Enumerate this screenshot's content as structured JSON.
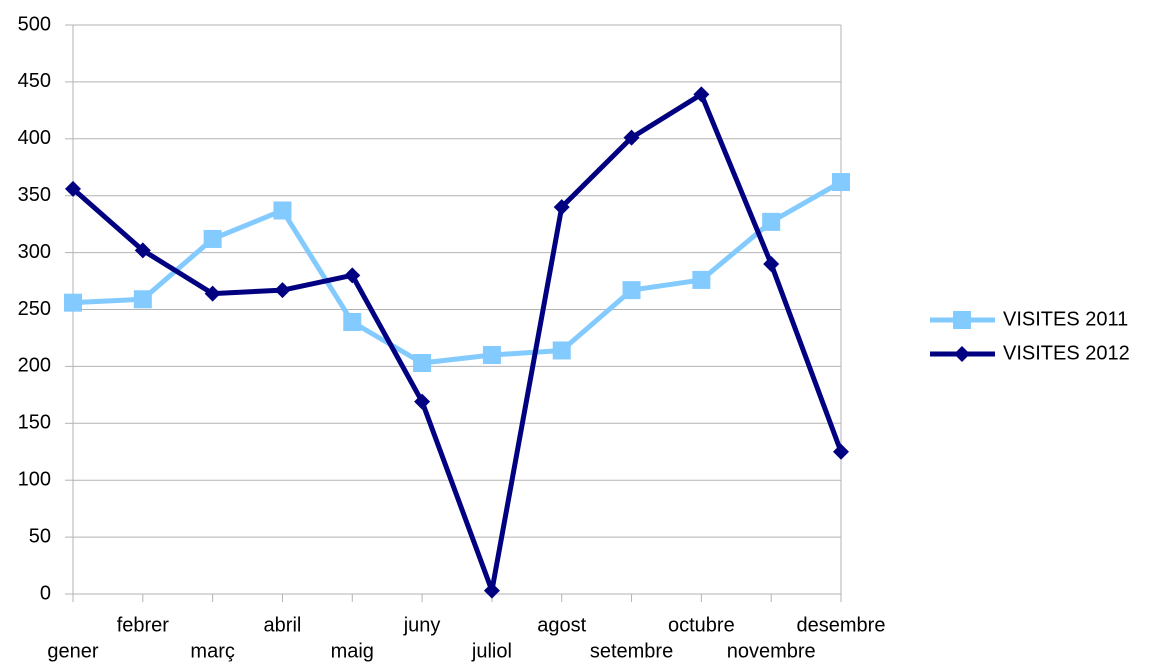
{
  "chart_data": {
    "type": "line",
    "categories": [
      "gener",
      "febrer",
      "març",
      "abril",
      "maig",
      "juny",
      "juliol",
      "agost",
      "setembre",
      "octubre",
      "novembre",
      "desembre"
    ],
    "series": [
      {
        "name": "VISITES 2011",
        "color": "#83caff",
        "marker": "square",
        "values": [
          256,
          259,
          312,
          337,
          239,
          203,
          210,
          214,
          267,
          276,
          327,
          362
        ]
      },
      {
        "name": "VISITES 2012",
        "color": "#000080",
        "marker": "diamond",
        "values": [
          356,
          302,
          264,
          267,
          280,
          169,
          3,
          340,
          401,
          439,
          290,
          125
        ]
      }
    ],
    "ylim": [
      0,
      500
    ],
    "yticks": [
      0,
      50,
      100,
      150,
      200,
      250,
      300,
      350,
      400,
      450,
      500
    ],
    "grid": true,
    "legend": "right"
  }
}
